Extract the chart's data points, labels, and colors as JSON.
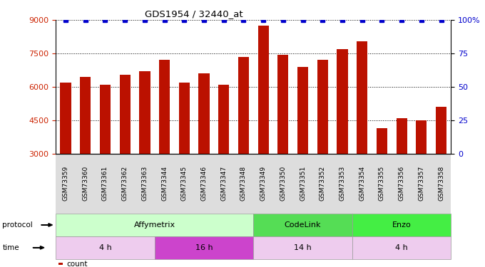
{
  "title": "GDS1954 / 32440_at",
  "samples": [
    "GSM73359",
    "GSM73360",
    "GSM73361",
    "GSM73362",
    "GSM73363",
    "GSM73344",
    "GSM73345",
    "GSM73346",
    "GSM73347",
    "GSM73348",
    "GSM73349",
    "GSM73350",
    "GSM73351",
    "GSM73352",
    "GSM73353",
    "GSM73354",
    "GSM73355",
    "GSM73356",
    "GSM73357",
    "GSM73358"
  ],
  "counts": [
    6200,
    6450,
    6100,
    6550,
    6700,
    7200,
    6200,
    6600,
    6100,
    7350,
    8750,
    7450,
    6900,
    7200,
    7700,
    8050,
    4150,
    4600,
    4500,
    5100
  ],
  "percentile": [
    100,
    100,
    100,
    100,
    100,
    100,
    100,
    100,
    100,
    100,
    100,
    100,
    100,
    100,
    100,
    100,
    100,
    100,
    100,
    100
  ],
  "ylim_left": [
    3000,
    9000
  ],
  "ylim_right": [
    0,
    100
  ],
  "yticks_left": [
    3000,
    4500,
    6000,
    7500,
    9000
  ],
  "yticks_right": [
    0,
    25,
    50,
    75,
    100
  ],
  "bar_color": "#bb1100",
  "percentile_color": "#0000cc",
  "protocol_groups": [
    {
      "label": "Affymetrix",
      "start": 0,
      "end": 10,
      "color": "#ccffcc"
    },
    {
      "label": "CodeLink",
      "start": 10,
      "end": 15,
      "color": "#55dd55"
    },
    {
      "label": "Enzo",
      "start": 15,
      "end": 20,
      "color": "#44ee44"
    }
  ],
  "time_groups": [
    {
      "label": "4 h",
      "start": 0,
      "end": 5,
      "color": "#eeccee"
    },
    {
      "label": "16 h",
      "start": 5,
      "end": 10,
      "color": "#cc44cc"
    },
    {
      "label": "14 h",
      "start": 10,
      "end": 15,
      "color": "#eeccee"
    },
    {
      "label": "4 h",
      "start": 15,
      "end": 20,
      "color": "#eeccee"
    }
  ],
  "bg_color": "#ffffff",
  "tick_label_color": "#cc2200",
  "right_tick_color": "#0000cc",
  "xtick_bg": "#dddddd"
}
